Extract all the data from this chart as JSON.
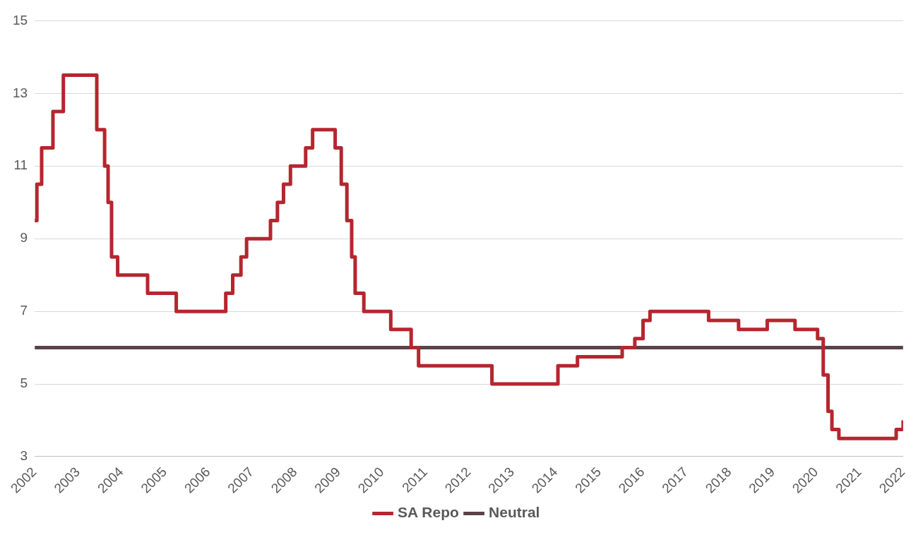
{
  "chart_data": {
    "type": "step",
    "xlim": [
      2002,
      2022
    ],
    "xticks": [
      2002,
      2003,
      2004,
      2005,
      2006,
      2007,
      2008,
      2009,
      2010,
      2011,
      2012,
      2013,
      2014,
      2015,
      2016,
      2017,
      2018,
      2019,
      2020,
      2021,
      2022
    ],
    "ylim": [
      3,
      15
    ],
    "yticks": [
      3,
      5,
      7,
      9,
      11,
      13,
      15
    ],
    "grid": "y",
    "legend": "bottom",
    "marker": "none",
    "line_style": "solid",
    "series": [
      {
        "name": "SA Repo",
        "color": "#b5262f",
        "x": [
          2002.0,
          2002.05,
          2002.16,
          2002.42,
          2002.66,
          2003.43,
          2003.61,
          2003.69,
          2003.77,
          2003.91,
          2004.6,
          2005.26,
          2006.4,
          2006.56,
          2006.75,
          2006.88,
          2007.43,
          2007.59,
          2007.73,
          2007.89,
          2008.24,
          2008.4,
          2008.92,
          2009.06,
          2009.19,
          2009.3,
          2009.38,
          2009.58,
          2010.2,
          2010.67,
          2010.84,
          2012.53,
          2014.05,
          2014.5,
          2015.53,
          2015.82,
          2016.01,
          2016.17,
          2017.52,
          2018.21,
          2018.87,
          2019.51,
          2020.03,
          2020.16,
          2020.27,
          2020.36,
          2020.52,
          2021.84,
          2022.0
        ],
        "values": [
          9.5,
          10.5,
          11.5,
          12.5,
          13.5,
          12,
          11,
          10,
          8.5,
          8,
          7.5,
          7,
          7.5,
          8,
          8.5,
          9,
          9.5,
          10,
          10.5,
          11,
          11.5,
          12,
          11.5,
          10.5,
          9.5,
          8.5,
          7.5,
          7,
          6.5,
          6,
          5.5,
          5,
          5.5,
          5.75,
          6,
          6.25,
          6.75,
          7,
          6.75,
          6.5,
          6.75,
          6.5,
          6.25,
          5.25,
          4.25,
          3.75,
          3.5,
          3.75,
          4
        ]
      },
      {
        "name": "Neutral",
        "type": "line",
        "color": "#5a4347",
        "x": [
          2002,
          2022
        ],
        "values": [
          6,
          6
        ]
      }
    ]
  }
}
